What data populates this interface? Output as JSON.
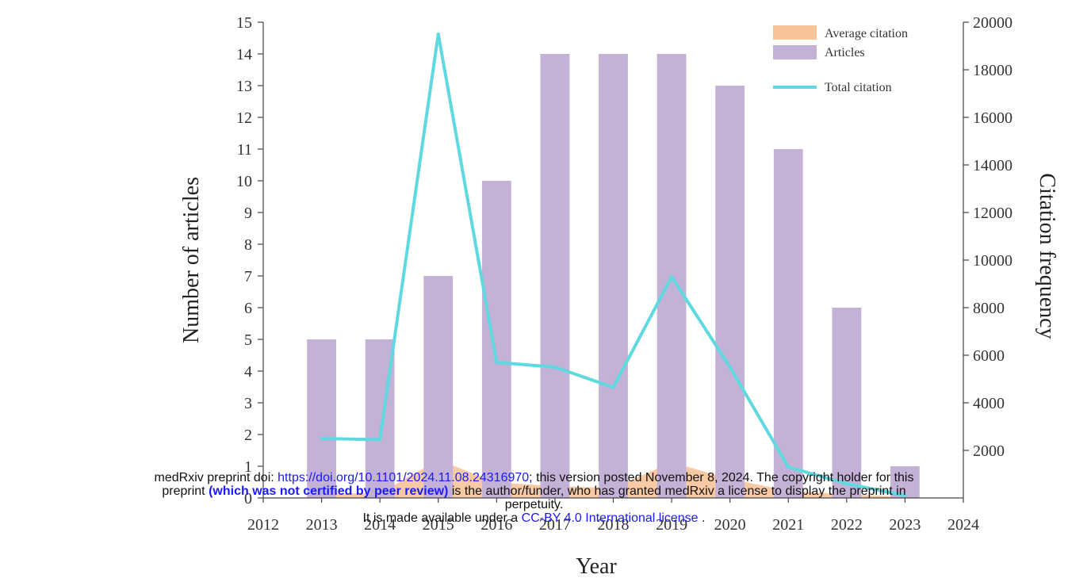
{
  "chart_data": {
    "type": "bar",
    "x": [
      2013,
      2014,
      2015,
      2016,
      2017,
      2018,
      2019,
      2020,
      2021,
      2022,
      2023
    ],
    "x_ticks": [
      "2012",
      "2013",
      "2014",
      "2015",
      "2016",
      "2017",
      "2018",
      "2019",
      "2020",
      "2021",
      "2022",
      "2023",
      "2024"
    ],
    "xlim": [
      2012,
      2024
    ],
    "xlabel": "Year",
    "ylabel": "Number of articles",
    "y2label": "Citation frequency",
    "ylim": [
      0,
      15
    ],
    "y2lim": [
      0,
      20000
    ],
    "y_ticks": [
      "0",
      "1",
      "2",
      "3",
      "4",
      "5",
      "6",
      "7",
      "8",
      "9",
      "10",
      "11",
      "12",
      "13",
      "14",
      "15"
    ],
    "y2_ticks": [
      "2000",
      "4000",
      "6000",
      "8000",
      "10000",
      "12000",
      "14000",
      "16000",
      "18000",
      "20000"
    ],
    "series": [
      {
        "name": "Average citation",
        "type": "area",
        "axis": "right",
        "color": "#f7c49a",
        "values": [
          180,
          200,
          1600,
          650,
          500,
          420,
          1500,
          800,
          300,
          150,
          60
        ]
      },
      {
        "name": "Articles",
        "type": "bar",
        "axis": "left",
        "color": "#c3b1d6",
        "values": [
          5,
          5,
          7,
          10,
          14,
          14,
          14,
          13,
          11,
          6,
          1
        ]
      },
      {
        "name": "Total citation",
        "type": "line",
        "axis": "right",
        "color": "#5fd9e0",
        "values": [
          2500,
          2450,
          19500,
          5700,
          5500,
          4650,
          9300,
          5500,
          1300,
          600,
          100
        ]
      }
    ],
    "legend_position": "top-right",
    "grid": false
  },
  "notice": {
    "line1_prefix": "medRxiv preprint doi: ",
    "doi_link": "https://doi.org/10.1101/2024.11.08.24316970",
    "line1_suffix": "; this version posted November 8, 2024. The copyright holder for this",
    "line2_prefix": "preprint ",
    "peer_review": "(which was not certified by peer review)",
    "line2_suffix": " is the author/funder, who has granted medRxiv a license to display the preprint in",
    "line3": "perpetuity.",
    "line4_prefix": "It is made available under a ",
    "license_link": "CC-BY 4.0 International license",
    "line4_suffix": " ."
  }
}
